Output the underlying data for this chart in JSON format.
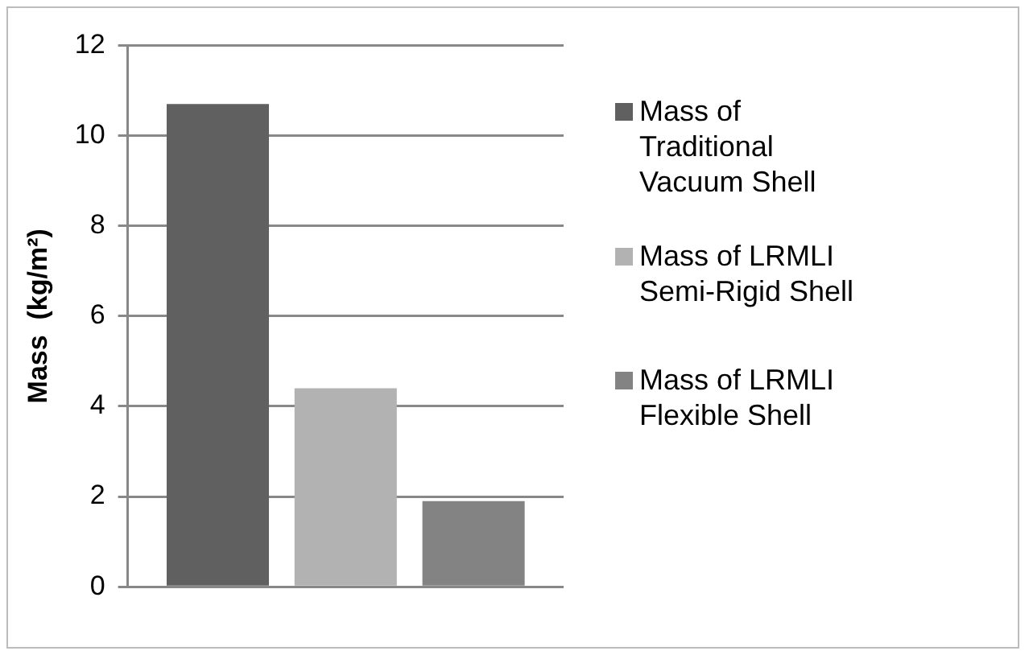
{
  "chart_data": {
    "type": "bar",
    "ylabel": "Mass  (kg/m²)",
    "categories": [
      null
    ],
    "series": [
      {
        "name": "Mass of Traditional Vacuum Shell",
        "color": "#606060",
        "values": [
          10.7
        ]
      },
      {
        "name": "Mass of LRMLI Semi-Rigid Shell",
        "color": "#b2b2b2",
        "values": [
          4.4
        ]
      },
      {
        "name": "Mass of LRMLI Flexible Shell",
        "color": "#838383",
        "values": [
          1.9
        ]
      }
    ],
    "ylim": [
      0,
      12
    ],
    "yticks": [
      0,
      2,
      4,
      6,
      8,
      10,
      12
    ],
    "grid": "y",
    "legend": "right"
  }
}
